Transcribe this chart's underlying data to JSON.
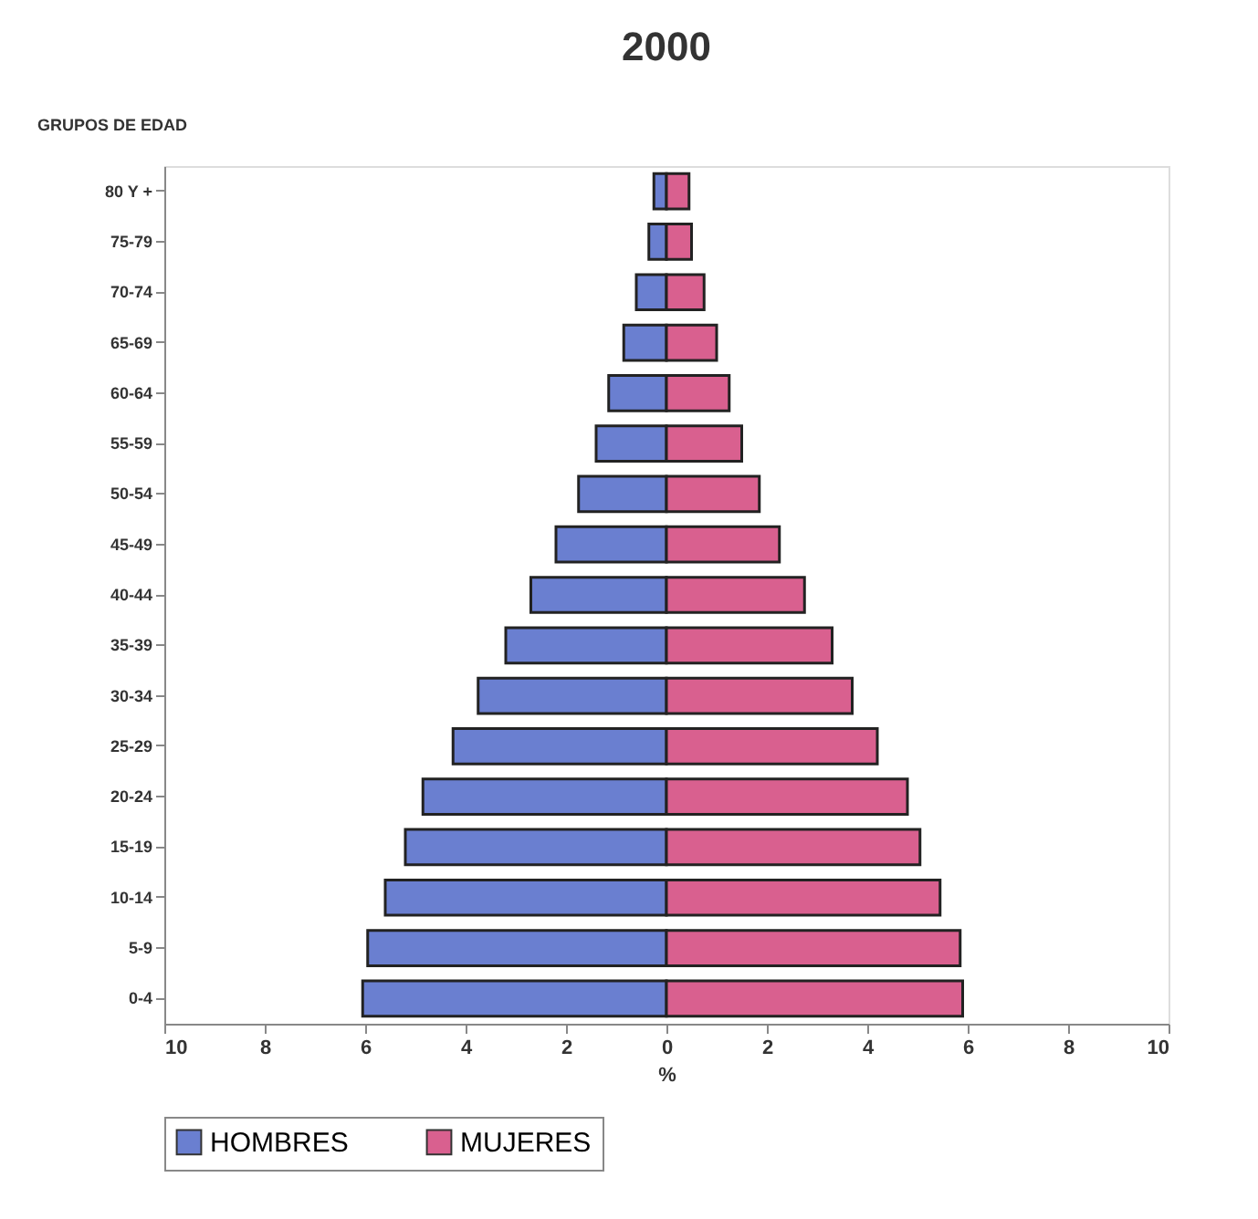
{
  "chart_data": {
    "type": "bar",
    "orientation": "horizontal",
    "title": "2000",
    "ylabel": "GRUPOS DE EDAD",
    "xlabel": "%",
    "categories": [
      "80 Y +",
      "75-79",
      "70-74",
      "65-69",
      "60-64",
      "55-59",
      "50-54",
      "45-49",
      "40-44",
      "35-39",
      "30-34",
      "25-29",
      "20-24",
      "15-19",
      "10-14",
      "5-9",
      "0-4"
    ],
    "series": [
      {
        "name": "HOMBRES",
        "color": "#6a7fd0",
        "values": [
          -0.25,
          -0.35,
          -0.6,
          -0.85,
          -1.15,
          -1.4,
          -1.75,
          -2.2,
          -2.7,
          -3.2,
          -3.75,
          -4.25,
          -4.85,
          -5.2,
          -5.6,
          -5.95,
          -6.05
        ]
      },
      {
        "name": "MUJERES",
        "color": "#d9608f",
        "values": [
          0.45,
          0.5,
          0.75,
          1.0,
          1.25,
          1.5,
          1.85,
          2.25,
          2.75,
          3.3,
          3.7,
          4.2,
          4.8,
          5.05,
          5.45,
          5.85,
          5.9
        ]
      }
    ],
    "xlim": [
      -10,
      10
    ],
    "xticks": [
      {
        "value": -10,
        "label": "10"
      },
      {
        "value": -8,
        "label": "8"
      },
      {
        "value": -6,
        "label": "6"
      },
      {
        "value": -4,
        "label": "4"
      },
      {
        "value": -2,
        "label": "2"
      },
      0,
      2,
      4,
      6,
      8,
      10
    ],
    "stacked": true,
    "grid": false,
    "legend": "bottom"
  }
}
